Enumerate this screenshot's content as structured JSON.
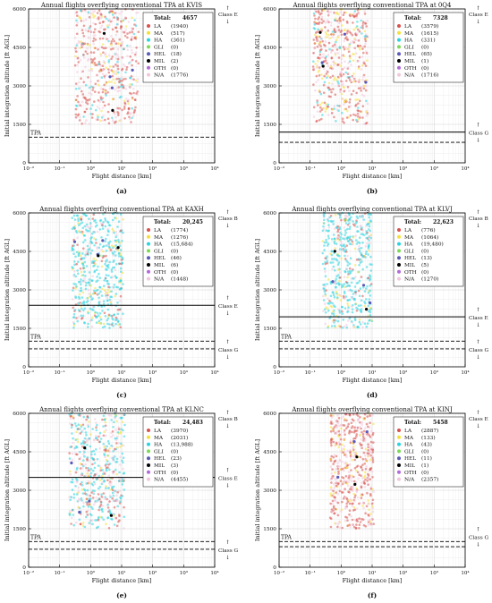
{
  "panels": [
    {
      "letter": "(a)",
      "title": "Annual flights overflying conventional TPA at KVIS",
      "total_label": "Total:",
      "total_value": "4657",
      "legend": [
        {
          "code": "LA",
          "count": "(1940)",
          "color": "#d9534f"
        },
        {
          "code": "MA",
          "count": "(517)",
          "color": "#f5e03a"
        },
        {
          "code": "HA",
          "count": "(361)",
          "color": "#29d3e0"
        },
        {
          "code": "GLI",
          "count": "(0)",
          "color": "#7ed957"
        },
        {
          "code": "HEL",
          "count": "(18)",
          "color": "#5a5ab8"
        },
        {
          "code": "MIL",
          "count": "(2)",
          "color": "#000000"
        },
        {
          "code": "OTH",
          "count": "(0)",
          "color": "#b36ad9"
        },
        {
          "code": "N/A",
          "count": "(1776)",
          "color": "#f2c6dd"
        }
      ],
      "class_top": "Class E",
      "class_bottom": "",
      "tpa_label": "TPA",
      "tpa_altitude": 1000,
      "solid_line_altitude": null,
      "lower_dashed_altitude": null,
      "lower_label": "",
      "cloud": {
        "xmin": -0.5,
        "xmax": 1.55,
        "ymin": 1500,
        "ymax": 6000,
        "mix": [
          "LA",
          "LA",
          "LA",
          "N/A",
          "N/A",
          "MA",
          "HA",
          "LA",
          "N/A"
        ]
      },
      "chart_data": {
        "type": "scatter",
        "xlabel": "Flight distance [km]",
        "ylabel": "Initial integration altitude [ft AGL]",
        "xlim_log10": [
          -2,
          4
        ],
        "ylim": [
          0,
          6000
        ],
        "xscale": "log",
        "y_ticks": [
          0,
          1500,
          3000,
          4500,
          6000
        ],
        "x_ticks": [
          "10⁻²",
          "10⁻¹",
          "10⁰",
          "10¹",
          "10²",
          "10³",
          "10⁴"
        ],
        "grid": true,
        "legend_position": "top-right"
      }
    },
    {
      "letter": "(b)",
      "title": "Annual flights overflying conventional TPA at 0Q4",
      "total_label": "Total:",
      "total_value": "7328",
      "legend": [
        {
          "code": "LA",
          "count": "(3579)",
          "color": "#d9534f"
        },
        {
          "code": "MA",
          "count": "(1615)",
          "color": "#f5e03a"
        },
        {
          "code": "HA",
          "count": "(331)",
          "color": "#29d3e0"
        },
        {
          "code": "GLI",
          "count": "(0)",
          "color": "#7ed957"
        },
        {
          "code": "HEL",
          "count": "(65)",
          "color": "#5a5ab8"
        },
        {
          "code": "MIL",
          "count": "(1)",
          "color": "#000000"
        },
        {
          "code": "OTH",
          "count": "(0)",
          "color": "#b36ad9"
        },
        {
          "code": "N/A",
          "count": "(1716)",
          "color": "#f2c6dd"
        }
      ],
      "class_top": "Class E",
      "class_bottom": "Class G",
      "tpa_label": "",
      "tpa_altitude": 800,
      "solid_line_altitude": 1200,
      "lower_dashed_altitude": null,
      "lower_label": "",
      "cloud": {
        "xmin": -0.9,
        "xmax": 0.85,
        "ymin": 1500,
        "ymax": 6000,
        "mix": [
          "LA",
          "MA",
          "LA",
          "MA",
          "N/A",
          "HA",
          "LA",
          "N/A",
          "LA"
        ]
      },
      "chart_data": {
        "type": "scatter",
        "xlabel": "Flight distance [km]",
        "ylabel": "Initial integration altitude [ft AGL]",
        "xlim_log10": [
          -2,
          4
        ],
        "ylim": [
          0,
          6000
        ],
        "xscale": "log",
        "y_ticks": [
          0,
          1500,
          3000,
          4500,
          6000
        ],
        "x_ticks": [
          "10⁻²",
          "10⁻¹",
          "10⁰",
          "10¹",
          "10²",
          "10³",
          "10⁴"
        ],
        "grid": true,
        "legend_position": "top-right"
      }
    },
    {
      "letter": "(c)",
      "title": "Annual flights overflying conventional TPA at KAXH",
      "total_label": "Total:",
      "total_value": "20,245",
      "legend": [
        {
          "code": "LA",
          "count": "(1774)",
          "color": "#d9534f"
        },
        {
          "code": "MA",
          "count": "(1276)",
          "color": "#f5e03a"
        },
        {
          "code": "HA",
          "count": "(15,684)",
          "color": "#29d3e0"
        },
        {
          "code": "GLI",
          "count": "(0)",
          "color": "#7ed957"
        },
        {
          "code": "HEL",
          "count": "(46)",
          "color": "#5a5ab8"
        },
        {
          "code": "MIL",
          "count": "(6)",
          "color": "#000000"
        },
        {
          "code": "OTH",
          "count": "(0)",
          "color": "#b36ad9"
        },
        {
          "code": "N/A",
          "count": "(1448)",
          "color": "#f2c6dd"
        }
      ],
      "class_top": "Class B",
      "class_bottom": "Class E",
      "tpa_label": "TPA",
      "tpa_altitude": 1000,
      "solid_line_altitude": 2400,
      "lower_dashed_altitude": 700,
      "lower_label": "Class G",
      "cloud": {
        "xmin": -0.6,
        "xmax": 1.05,
        "ymin": 1500,
        "ymax": 6000,
        "mix": [
          "HA",
          "HA",
          "HA",
          "HA",
          "HA",
          "LA",
          "N/A",
          "MA",
          "HA"
        ]
      },
      "chart_data": {
        "type": "scatter",
        "xlabel": "Flight distance [km]",
        "ylabel": "Initial integration altitude [ft AGL]",
        "xlim_log10": [
          -2,
          4
        ],
        "ylim": [
          0,
          6000
        ],
        "xscale": "log",
        "y_ticks": [
          0,
          1500,
          3000,
          4500,
          6000
        ],
        "x_ticks": [
          "10⁻²",
          "10⁻¹",
          "10⁰",
          "10¹",
          "10²",
          "10³",
          "10⁴"
        ],
        "grid": true,
        "legend_position": "top-right"
      }
    },
    {
      "letter": "(d)",
      "title": "Annual flights overflying conventional TPA at KLVJ",
      "total_label": "Total:",
      "total_value": "22,623",
      "legend": [
        {
          "code": "LA",
          "count": "(776)",
          "color": "#d9534f"
        },
        {
          "code": "MA",
          "count": "(1064)",
          "color": "#f5e03a"
        },
        {
          "code": "HA",
          "count": "(19,480)",
          "color": "#29d3e0"
        },
        {
          "code": "GLI",
          "count": "(0)",
          "color": "#7ed957"
        },
        {
          "code": "HEL",
          "count": "(13)",
          "color": "#5a5ab8"
        },
        {
          "code": "MIL",
          "count": "(5)",
          "color": "#000000"
        },
        {
          "code": "OTH",
          "count": "(0)",
          "color": "#b36ad9"
        },
        {
          "code": "N/A",
          "count": "(1270)",
          "color": "#f2c6dd"
        }
      ],
      "class_top": "Class B",
      "class_bottom": "Class E",
      "tpa_label": "TPA",
      "tpa_altitude": 1000,
      "solid_line_altitude": 1950,
      "lower_dashed_altitude": 700,
      "lower_label": "Class G",
      "cloud": {
        "xmin": -0.6,
        "xmax": 1.0,
        "ymin": 1500,
        "ymax": 6000,
        "mix": [
          "HA",
          "HA",
          "HA",
          "HA",
          "HA",
          "HA",
          "LA",
          "MA",
          "N/A"
        ]
      },
      "chart_data": {
        "type": "scatter",
        "xlabel": "Flight distance [km]",
        "ylabel": "Initial integration altitude [ft AGL]",
        "xlim_log10": [
          -2,
          4
        ],
        "ylim": [
          0,
          6000
        ],
        "xscale": "log",
        "y_ticks": [
          0,
          1500,
          3000,
          4500,
          6000
        ],
        "x_ticks": [
          "10⁻²",
          "10⁻¹",
          "10⁰",
          "10¹",
          "10²",
          "10³",
          "10⁴"
        ],
        "grid": true,
        "legend_position": "top-right"
      }
    },
    {
      "letter": "(e)",
      "title": "Annual flights overflying conventional TPA at KLNC",
      "total_label": "Total:",
      "total_value": "24,483",
      "legend": [
        {
          "code": "LA",
          "count": "(3970)",
          "color": "#d9534f"
        },
        {
          "code": "MA",
          "count": "(2031)",
          "color": "#f5e03a"
        },
        {
          "code": "HA",
          "count": "(13,988)",
          "color": "#29d3e0"
        },
        {
          "code": "GLI",
          "count": "(0)",
          "color": "#7ed957"
        },
        {
          "code": "HEL",
          "count": "(23)",
          "color": "#5a5ab8"
        },
        {
          "code": "MIL",
          "count": "(3)",
          "color": "#000000"
        },
        {
          "code": "OTH",
          "count": "(0)",
          "color": "#b36ad9"
        },
        {
          "code": "N/A",
          "count": "(4455)",
          "color": "#f2c6dd"
        }
      ],
      "class_top": "Class B",
      "class_bottom": "Class E",
      "tpa_label": "TPA",
      "tpa_altitude": 1000,
      "solid_line_altitude": 3500,
      "lower_dashed_altitude": 700,
      "lower_label": "Class G",
      "cloud": {
        "xmin": -0.7,
        "xmax": 1.1,
        "ymin": 1500,
        "ymax": 6000,
        "mix": [
          "HA",
          "HA",
          "HA",
          "LA",
          "N/A",
          "N/A",
          "MA",
          "HA",
          "LA"
        ]
      },
      "chart_data": {
        "type": "scatter",
        "xlabel": "Flight distance [km]",
        "ylabel": "Initial integration altitude [ft AGL]",
        "xlim_log10": [
          -2,
          4
        ],
        "ylim": [
          0,
          6000
        ],
        "xscale": "log",
        "y_ticks": [
          0,
          1500,
          3000,
          4500,
          6000
        ],
        "x_ticks": [
          "10⁻²",
          "10⁻¹",
          "10⁰",
          "10¹",
          "10²",
          "10³",
          "10⁴"
        ],
        "grid": true,
        "legend_position": "top-right"
      }
    },
    {
      "letter": "(f)",
      "title": "Annual flights overflying conventional TPA at KINJ",
      "total_label": "Total:",
      "total_value": "5458",
      "legend": [
        {
          "code": "LA",
          "count": "(2887)",
          "color": "#d9534f"
        },
        {
          "code": "MA",
          "count": "(133)",
          "color": "#f5e03a"
        },
        {
          "code": "HA",
          "count": "(43)",
          "color": "#29d3e0"
        },
        {
          "code": "GLI",
          "count": "(0)",
          "color": "#7ed957"
        },
        {
          "code": "HEL",
          "count": "(11)",
          "color": "#5a5ab8"
        },
        {
          "code": "MIL",
          "count": "(1)",
          "color": "#000000"
        },
        {
          "code": "OTH",
          "count": "(0)",
          "color": "#b36ad9"
        },
        {
          "code": "N/A",
          "count": "(2357)",
          "color": "#f2c6dd"
        }
      ],
      "class_top": "Class E",
      "class_bottom": "Class G",
      "tpa_label": "TPA",
      "tpa_altitude": 1000,
      "solid_line_altitude": null,
      "lower_dashed_altitude": 800,
      "lower_label": "",
      "cloud": {
        "xmin": -0.35,
        "xmax": 1.05,
        "ymin": 1500,
        "ymax": 6000,
        "mix": [
          "LA",
          "LA",
          "LA",
          "N/A",
          "N/A",
          "LA",
          "N/A",
          "LA",
          "MA"
        ]
      },
      "chart_data": {
        "type": "scatter",
        "xlabel": "Flight distance [km]",
        "ylabel": "Initial integration altitude [ft AGL]",
        "xlim_log10": [
          -2,
          4
        ],
        "ylim": [
          0,
          6000
        ],
        "xscale": "log",
        "y_ticks": [
          0,
          1500,
          3000,
          4500,
          6000
        ],
        "x_ticks": [
          "10⁻²",
          "10⁻¹",
          "10⁰",
          "10¹",
          "10²",
          "10³",
          "10⁴"
        ],
        "grid": true,
        "legend_position": "top-right"
      }
    }
  ]
}
